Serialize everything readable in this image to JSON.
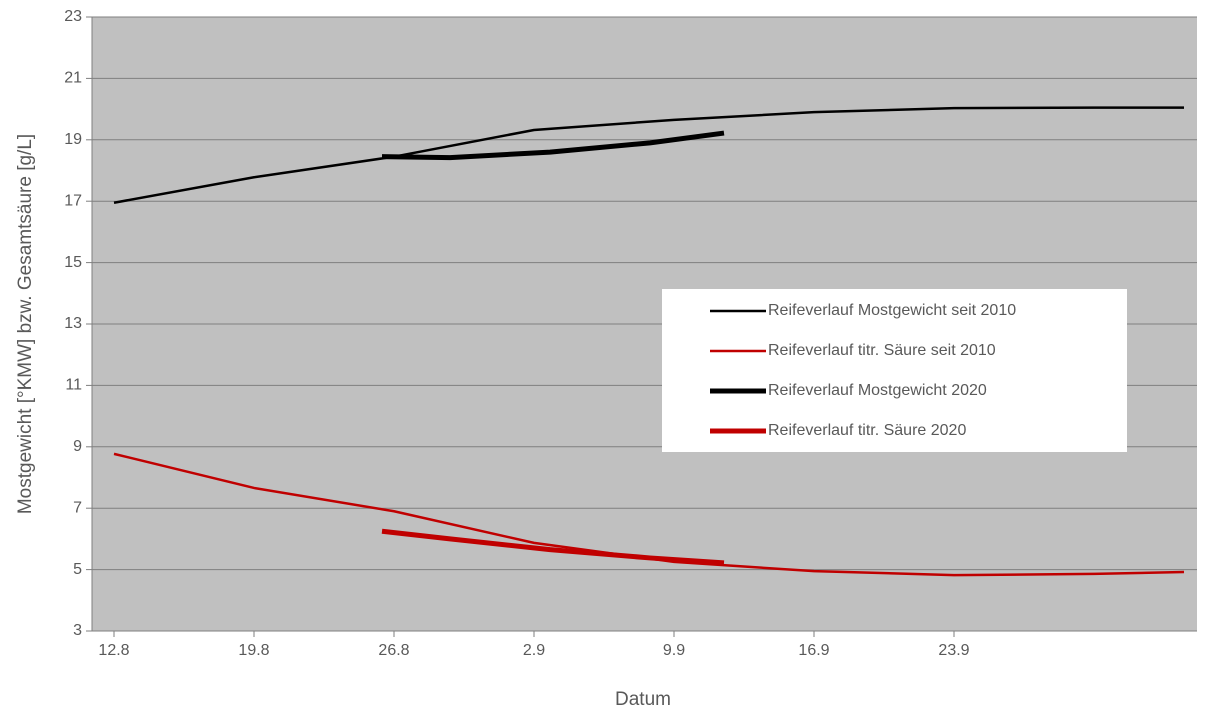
{
  "chart_data": {
    "type": "line",
    "x_label": "Datum",
    "y_label": "Mostgewicht [°KMW] bzw. Gesamtsäure [g/L]",
    "xlim": [
      222.9,
      278.15
    ],
    "ylim": [
      3,
      23
    ],
    "xticks": [
      {
        "value": 224,
        "label": "12.8"
      },
      {
        "value": 231,
        "label": "19.8"
      },
      {
        "value": 238,
        "label": "26.8"
      },
      {
        "value": 245,
        "label": "2.9"
      },
      {
        "value": 252,
        "label": "9.9"
      },
      {
        "value": 259,
        "label": "16.9"
      },
      {
        "value": 266,
        "label": "23.9"
      }
    ],
    "yticks": [
      3,
      5,
      7,
      9,
      11,
      13,
      15,
      17,
      19,
      21,
      23
    ],
    "grid": true,
    "legend": "right",
    "series": [
      {
        "name": "Reifeverlauf Mostgewicht seit 2010",
        "color": "#000000",
        "width": 2.5,
        "x": [
          224,
          231,
          238,
          245,
          252,
          259,
          266,
          273,
          277.5
        ],
        "values": [
          16.95,
          17.78,
          18.45,
          19.32,
          19.65,
          19.9,
          20.03,
          20.05,
          20.05
        ]
      },
      {
        "name": "Reifeverlauf titr. Säure seit 2010",
        "color": "#c00000",
        "width": 2.5,
        "x": [
          224,
          231,
          238,
          245,
          252,
          259,
          266,
          273,
          277.5
        ],
        "values": [
          8.77,
          7.66,
          6.9,
          5.87,
          5.25,
          4.95,
          4.82,
          4.86,
          4.92
        ]
      },
      {
        "name": "Reifeverlauf Mostgewicht 2020",
        "color": "#000000",
        "width": 5,
        "x": [
          237.4,
          240.8,
          245.8,
          250.8,
          254.5
        ],
        "values": [
          18.45,
          18.42,
          18.6,
          18.9,
          19.22
        ]
      },
      {
        "name": "Reifeverlauf titr. Säure 2020",
        "color": "#c00000",
        "width": 5,
        "x": [
          237.4,
          240.8,
          245.8,
          250.8,
          254.5
        ],
        "values": [
          6.25,
          6.0,
          5.65,
          5.38,
          5.22
        ]
      }
    ]
  }
}
